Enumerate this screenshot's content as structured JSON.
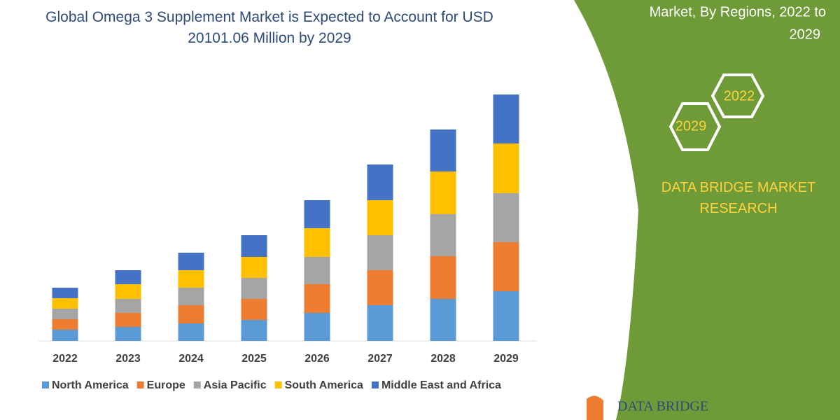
{
  "chart_data": {
    "type": "bar",
    "stacked": true,
    "title": "Global Omega 3 Supplement Market is Expected to Account for USD 20101.06 Million by 2029",
    "categories": [
      "2022",
      "2023",
      "2024",
      "2025",
      "2026",
      "2027",
      "2028",
      "2029"
    ],
    "series": [
      {
        "name": "North America",
        "color": "#5b9bd5",
        "values": [
          16,
          20,
          25,
          30,
          40,
          51,
          60,
          71
        ]
      },
      {
        "name": "Europe",
        "color": "#ed7d31",
        "values": [
          15,
          20,
          26,
          30,
          41,
          50,
          61,
          70
        ]
      },
      {
        "name": "Asia Pacific",
        "color": "#a5a5a5",
        "values": [
          15,
          20,
          25,
          30,
          39,
          50,
          60,
          70
        ]
      },
      {
        "name": "South America",
        "color": "#ffc000",
        "values": [
          15,
          21,
          25,
          30,
          41,
          50,
          61,
          71
        ]
      },
      {
        "name": "Middle East and Africa",
        "color": "#4472c4",
        "values": [
          15,
          20,
          25,
          31,
          40,
          51,
          60,
          70
        ]
      }
    ]
  },
  "side_panel": {
    "heading": [
      "Market, By Regions, 2022 to",
      "2029"
    ],
    "hexagons": [
      "2022",
      "2029"
    ],
    "brand": "DATA BRIDGE MARKET RESEARCH",
    "logo": "DATA BRIDGE"
  }
}
